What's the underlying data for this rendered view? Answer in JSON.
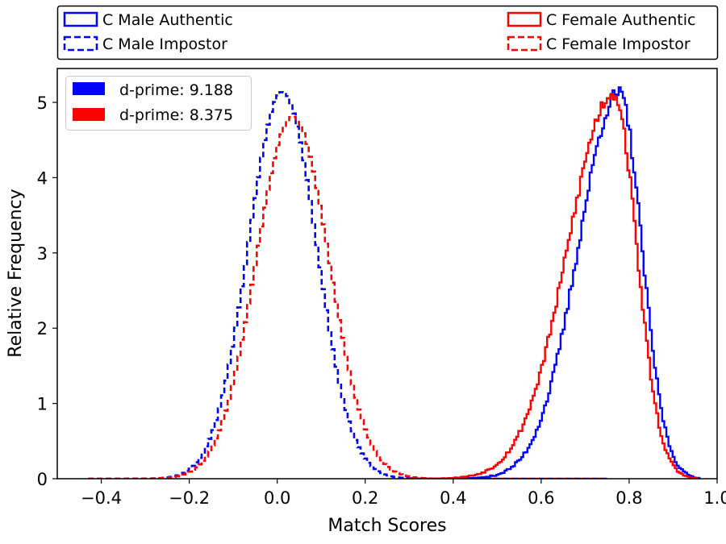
{
  "chart_data": {
    "type": "histogram-step",
    "xlabel": "Match Scores",
    "ylabel": "Relative Frequency",
    "xlim": [
      -0.5,
      1.0
    ],
    "ylim": [
      0,
      5.45
    ],
    "xticks": [
      -0.4,
      -0.2,
      0.0,
      0.2,
      0.4,
      0.6,
      0.8,
      1.0
    ],
    "xtick_labels": [
      "−0.4",
      "−0.2",
      "0.0",
      "0.2",
      "0.4",
      "0.6",
      "0.8",
      "1.0"
    ],
    "yticks": [
      0,
      1,
      2,
      3,
      4,
      5
    ],
    "ytick_labels": [
      "0",
      "1",
      "2",
      "3",
      "4",
      "5"
    ],
    "grid": false,
    "top_legend": [
      {
        "label": "C Male Authentic",
        "color": "#0000ff",
        "style": "solid"
      },
      {
        "label": "C Female Authentic",
        "color": "#ff0000",
        "style": "solid"
      },
      {
        "label": "C Male Impostor",
        "color": "#0000ff",
        "style": "dashed"
      },
      {
        "label": "C Female Impostor",
        "color": "#ff0000",
        "style": "dashed"
      }
    ],
    "inner_legend": {
      "placement": "top-left",
      "entries": [
        {
          "label": "d-prime: 9.188",
          "color": "#0000ff"
        },
        {
          "label": "d-prime: 8.375",
          "color": "#ff0000"
        }
      ]
    },
    "series": [
      {
        "name": "C Male Impostor",
        "color": "#0000ff",
        "style": "dashed",
        "kind": "gaussian",
        "mean": 0.012,
        "peak": 5.14,
        "sigma": 0.0776,
        "range": [
          -0.43,
          0.75
        ],
        "bins": 160,
        "seed": 11
      },
      {
        "name": "C Female Impostor",
        "color": "#ff0000",
        "style": "dashed",
        "kind": "gaussian",
        "mean": 0.035,
        "peak": 4.81,
        "sigma": 0.0829,
        "range": [
          -0.43,
          0.75
        ],
        "bins": 160,
        "seed": 23
      },
      {
        "name": "C Male Authentic",
        "color": "#0000ff",
        "style": "solid",
        "kind": "skewed",
        "mode": 0.777,
        "peak": 5.12,
        "sigma_left": 0.092,
        "sigma_right": 0.052,
        "range": [
          0.3,
          0.96
        ],
        "bins": 140,
        "seed": 37
      },
      {
        "name": "C Female Authentic",
        "color": "#ff0000",
        "style": "solid",
        "kind": "skewed",
        "mode": 0.765,
        "peak": 5.12,
        "sigma_left": 0.104,
        "sigma_right": 0.052,
        "range": [
          0.3,
          0.955
        ],
        "bins": 140,
        "seed": 53
      }
    ]
  }
}
